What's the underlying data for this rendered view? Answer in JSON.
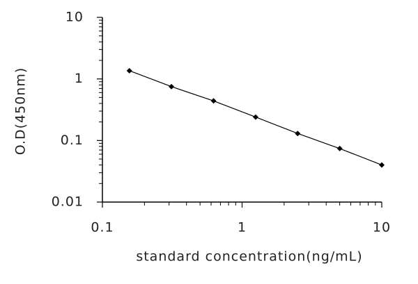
{
  "chart_data": {
    "type": "line",
    "xlabel": "standard concentration(ng/mL)",
    "ylabel": "O.D(450nm)",
    "x": [
      0.156,
      0.312,
      0.625,
      1.25,
      2.5,
      5,
      10
    ],
    "values": [
      1.36,
      0.75,
      0.44,
      0.24,
      0.13,
      0.074,
      0.04
    ],
    "color": "#000000",
    "xscale": "log",
    "yscale": "log",
    "xlim": [
      0.1,
      10
    ],
    "ylim": [
      0.01,
      10
    ],
    "xticks": [
      0.1,
      1,
      10
    ],
    "yticks": [
      0.01,
      0.1,
      1,
      10
    ],
    "minor_ticks": true,
    "markers": true
  }
}
